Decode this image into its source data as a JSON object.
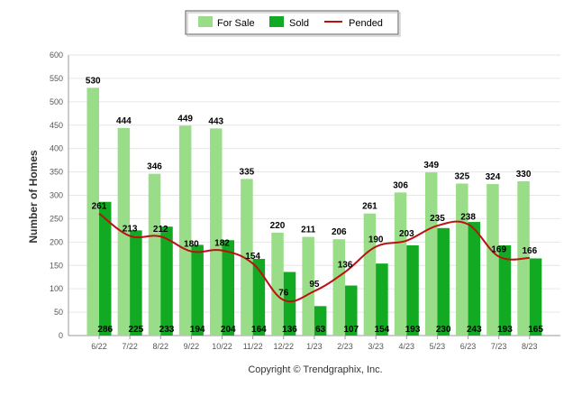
{
  "chart_data": {
    "type": "bar",
    "title": "",
    "xlabel": "",
    "ylabel": "Number of Homes",
    "ylim": [
      0,
      600
    ],
    "yticks": [
      0,
      50,
      100,
      150,
      200,
      250,
      300,
      350,
      400,
      450,
      500,
      550,
      600
    ],
    "categories": [
      "6/22",
      "7/22",
      "8/22",
      "9/22",
      "10/22",
      "11/22",
      "12/22",
      "1/23",
      "2/23",
      "3/23",
      "4/23",
      "5/23",
      "6/23",
      "7/23",
      "8/23"
    ],
    "series": [
      {
        "name": "For Sale",
        "type": "bar",
        "color": "#99dd88",
        "values": [
          530,
          444,
          346,
          449,
          443,
          335,
          220,
          211,
          206,
          261,
          306,
          349,
          325,
          324,
          330
        ]
      },
      {
        "name": "Sold",
        "type": "bar",
        "color": "#11aa22",
        "values": [
          286,
          225,
          233,
          194,
          204,
          164,
          136,
          63,
          107,
          154,
          193,
          230,
          243,
          193,
          165
        ]
      },
      {
        "name": "Pended",
        "type": "line",
        "color": "#bb1111",
        "values": [
          261,
          213,
          212,
          180,
          182,
          154,
          76,
          95,
          136,
          190,
          203,
          235,
          238,
          169,
          166
        ]
      }
    ],
    "legend_position": "top-center",
    "grid": true,
    "footer": "Copyright © Trendgraphix, Inc."
  }
}
